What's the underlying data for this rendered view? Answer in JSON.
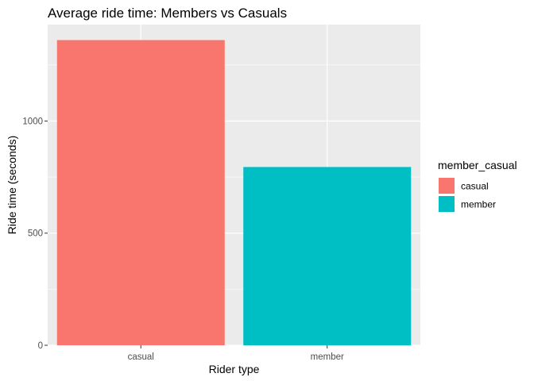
{
  "chart_data": {
    "type": "bar",
    "title": "Average ride time: Members vs Casuals",
    "xlabel": "Rider type",
    "ylabel": "Ride time (seconds)",
    "categories": [
      "casual",
      "member"
    ],
    "values": [
      1361,
      795
    ],
    "ylim": [
      0,
      1430
    ],
    "yticks": [
      0,
      500,
      1000
    ],
    "ytick_labels": [
      "0",
      "500",
      "1000"
    ],
    "grid": true,
    "legend": {
      "title": "member_casual",
      "placement": "right",
      "entries": [
        {
          "label": "casual",
          "color": "#F8766D"
        },
        {
          "label": "member",
          "color": "#00BFC4"
        }
      ]
    },
    "colors": [
      "#F8766D",
      "#00BFC4"
    ],
    "panel_background": "#EBEBEB",
    "grid_color": "#FFFFFF"
  }
}
